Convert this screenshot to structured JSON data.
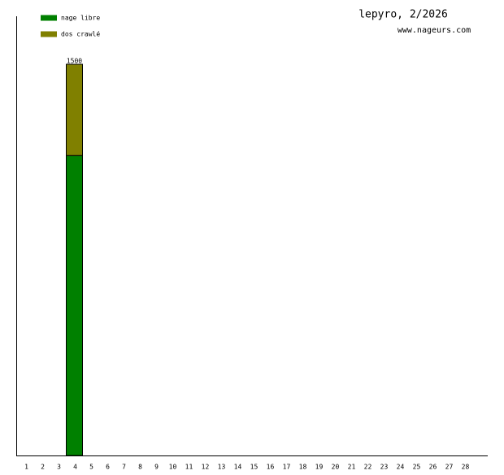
{
  "chart_data": {
    "type": "stacked-bar",
    "title": "lepyro, 2/2026",
    "subtitle": "www.nageurs.com",
    "categories": [
      "1",
      "2",
      "3",
      "4",
      "5",
      "6",
      "7",
      "8",
      "9",
      "10",
      "11",
      "12",
      "13",
      "14",
      "15",
      "16",
      "17",
      "18",
      "19",
      "20",
      "21",
      "22",
      "23",
      "24",
      "25",
      "26",
      "27",
      "28"
    ],
    "series": [
      {
        "name": "nage libre",
        "color": "#008000",
        "values": [
          0,
          0,
          0,
          1150,
          0,
          0,
          0,
          0,
          0,
          0,
          0,
          0,
          0,
          0,
          0,
          0,
          0,
          0,
          0,
          0,
          0,
          0,
          0,
          0,
          0,
          0,
          0,
          0
        ]
      },
      {
        "name": "dos crawlé",
        "color": "#808000",
        "values": [
          0,
          0,
          0,
          350,
          0,
          0,
          0,
          0,
          0,
          0,
          0,
          0,
          0,
          0,
          0,
          0,
          0,
          0,
          0,
          0,
          0,
          0,
          0,
          0,
          0,
          0,
          0,
          0
        ]
      }
    ],
    "totals": [
      null,
      null,
      null,
      1500,
      null,
      null,
      null,
      null,
      null,
      null,
      null,
      null,
      null,
      null,
      null,
      null,
      null,
      null,
      null,
      null,
      null,
      null,
      null,
      null,
      null,
      null,
      null,
      null
    ],
    "legend": "top-left"
  }
}
